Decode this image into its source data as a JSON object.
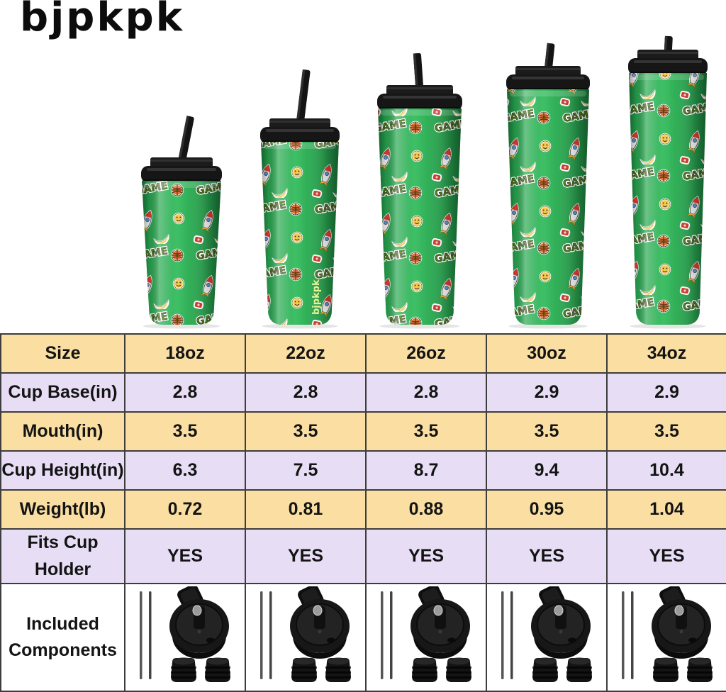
{
  "brand": {
    "logo": "bjpkpk",
    "cup_vertical_logo": "bjpkpk"
  },
  "hero": {
    "cups": [
      {
        "size": "18oz",
        "icon": "tumbler-18oz-icon"
      },
      {
        "size": "22oz",
        "icon": "tumbler-22oz-icon"
      },
      {
        "size": "26oz",
        "icon": "tumbler-26oz-icon"
      },
      {
        "size": "30oz",
        "icon": "tumbler-30oz-icon"
      },
      {
        "size": "34oz",
        "icon": "tumbler-34oz-icon"
      }
    ],
    "pattern_theme": "green tumbler with game stickers (GAME text, basketball, rocket, smiley, banana)"
  },
  "table": {
    "rows": [
      {
        "label": "Size",
        "bg": "yellow",
        "values": [
          "18oz",
          "22oz",
          "26oz",
          "30oz",
          "34oz"
        ]
      },
      {
        "label": "Cup Base(in)",
        "bg": "lavender",
        "values": [
          "2.8",
          "2.8",
          "2.8",
          "2.9",
          "2.9"
        ]
      },
      {
        "label": "Mouth(in)",
        "bg": "yellow",
        "values": [
          "3.5",
          "3.5",
          "3.5",
          "3.5",
          "3.5"
        ]
      },
      {
        "label": "Cup Height(in)",
        "bg": "lavender",
        "values": [
          "6.3",
          "7.5",
          "8.7",
          "9.4",
          "10.4"
        ]
      },
      {
        "label": "Weight(lb)",
        "bg": "yellow",
        "values": [
          "0.72",
          "0.81",
          "0.88",
          "0.95",
          "1.04"
        ]
      },
      {
        "label": "Fits Cup Holder",
        "bg": "lavender",
        "values": [
          "YES",
          "YES",
          "YES",
          "YES",
          "YES"
        ]
      },
      {
        "label": "Included Components",
        "bg": "white",
        "type": "components",
        "component_icons": [
          "straws-icon",
          "flip-lid-icon",
          "cap-icon",
          "cap-icon"
        ]
      }
    ]
  },
  "colors": {
    "row_yellow": "#fbdfa2",
    "row_lavender": "#e7def5",
    "table_border": "#3d3d3d",
    "cup_green": "#2fae55",
    "lid_black": "#161616",
    "background": "#ffffff",
    "text": "#141414"
  }
}
